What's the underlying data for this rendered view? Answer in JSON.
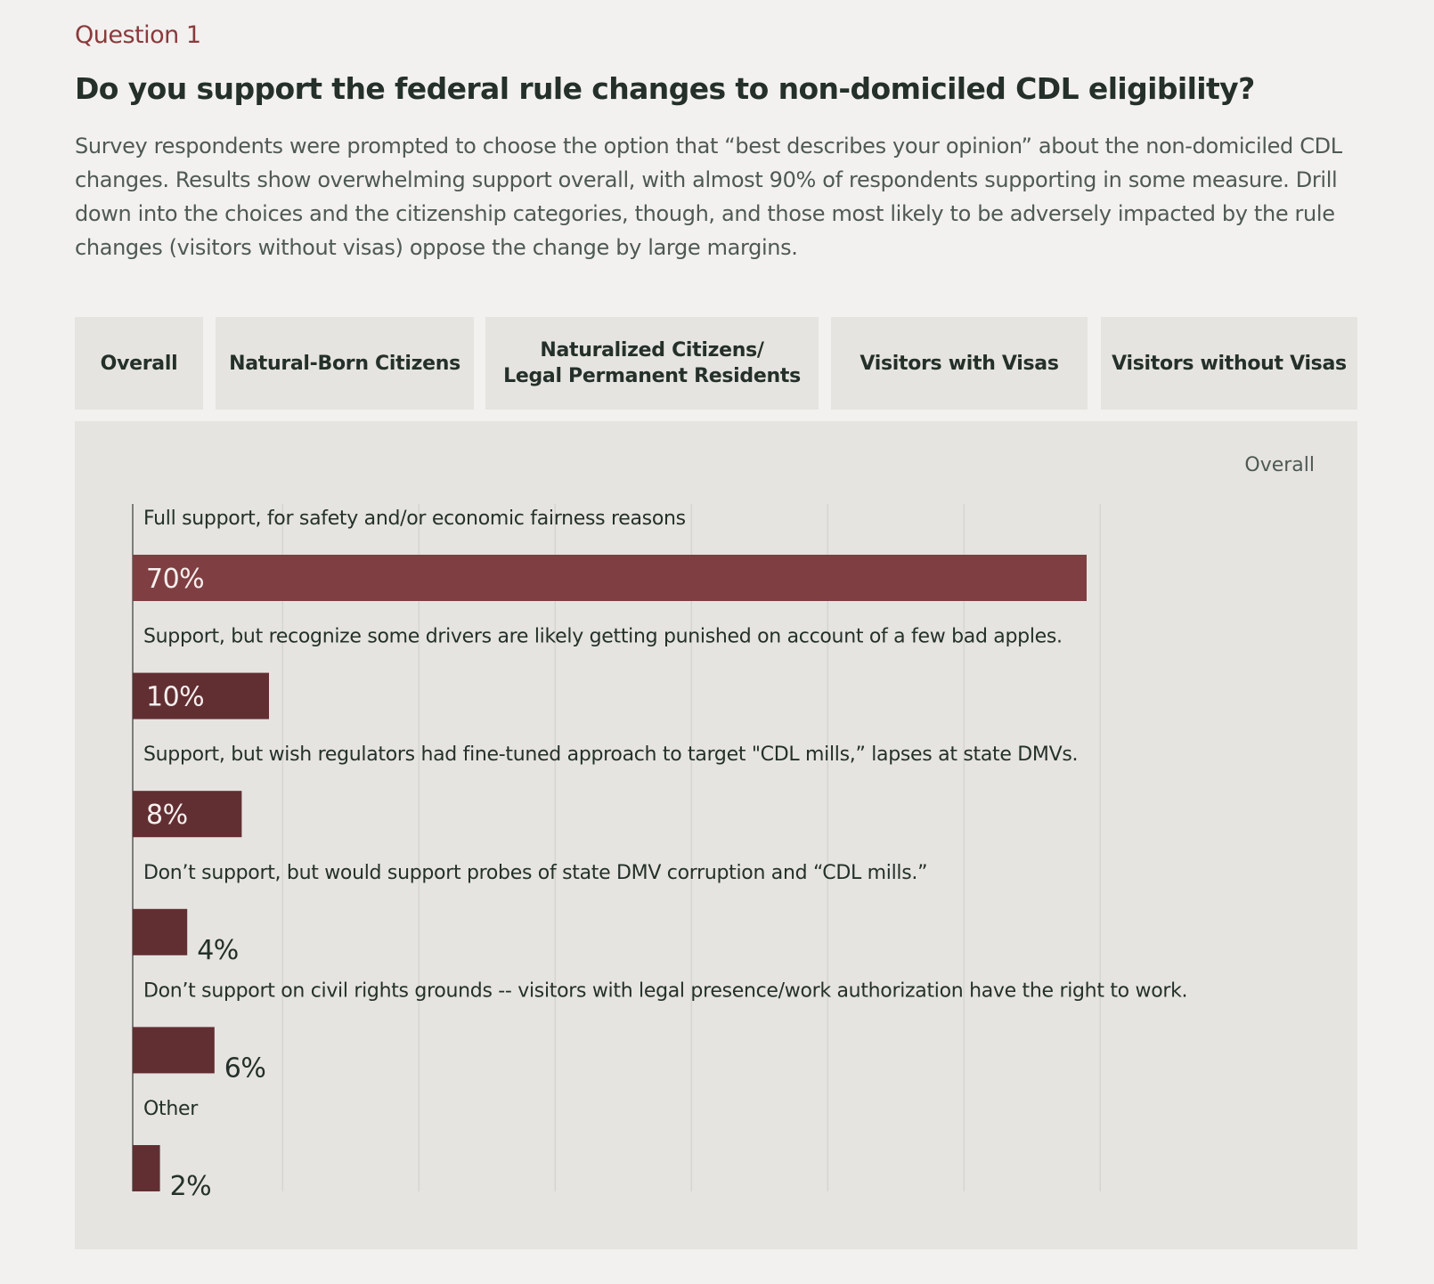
{
  "eyebrow": "Question 1",
  "headline": "Do you support the federal rule changes to non-domiciled CDL eligibility?",
  "intro": "Survey respondents were prompted to choose the option that “best describes your opinion” about the non-domiciled CDL changes. Results show overwhelming support overall, with almost 90% of respondents supporting in some measure. Drill down into the choices and the citizenship categories, though, and those most likely to be adversely impacted by the rule changes (visitors without visas) oppose the change by large margins.",
  "tabs": [
    {
      "label": "Overall",
      "active": true
    },
    {
      "label": "Natural-Born Citizens",
      "active": false
    },
    {
      "label_line1": "Naturalized Citizens/",
      "label_line2": "Legal Permanent Residents",
      "active": false
    },
    {
      "label": "Visitors with Visas",
      "active": false
    },
    {
      "label": "Visitors without Visas",
      "active": false
    }
  ],
  "panel_label": "Overall",
  "colors": {
    "accent": "#8a3a3c",
    "bar_primary": "#7f3f42",
    "bar_secondary": "#612f32",
    "panel_bg": "#e5e4e0",
    "page_bg": "#f2f1ef"
  },
  "chart_data": {
    "type": "bar",
    "orientation": "horizontal",
    "title": "",
    "categories": [
      "Full support, for safety and/or economic fairness reasons",
      "Support, but recognize some drivers are likely getting punished on account of a few bad apples.",
      "Support, but wish regulators had fine-tuned approach to target \"CDL mills,” lapses at state DMVs.",
      "Don’t support, but would support probes of state DMV corruption and “CDL mills.”",
      "Don’t support on civil rights grounds -- visitors with legal presence/work authorization have the right to work.",
      "Other"
    ],
    "values": [
      70,
      10,
      8,
      4,
      6,
      2
    ],
    "value_labels": [
      "70%",
      "10%",
      "8%",
      "4%",
      "6%",
      "2%"
    ],
    "unit": "%",
    "xlim": [
      0,
      80
    ],
    "grid": true,
    "legend": "none"
  }
}
